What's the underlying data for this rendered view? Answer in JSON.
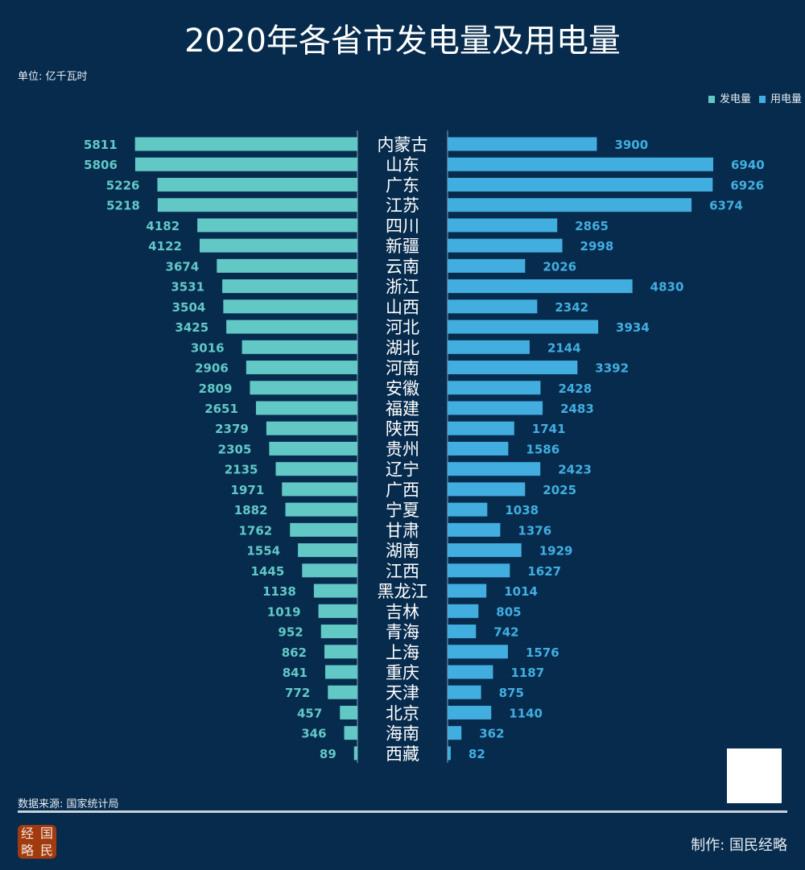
{
  "header": {
    "title": "2020年各省市发电量及用电量",
    "unit": "单位: 亿千瓦时"
  },
  "footer": {
    "source": "数据来源: 国家统计局",
    "maker": "制作:  国民经略",
    "logo_text": "经国略民"
  },
  "colors": {
    "background": "#062b4d",
    "generation": "#62c8c6",
    "consumption": "#42aee0"
  },
  "chart_data": {
    "type": "bar",
    "title": "2020年各省市发电量及用电量",
    "legend_position": "top-right",
    "grid": false,
    "categories": [
      "内蒙古",
      "山东",
      "广东",
      "江苏",
      "四川",
      "新疆",
      "云南",
      "浙江",
      "山西",
      "河北",
      "湖北",
      "河南",
      "安徽",
      "福建",
      "陕西",
      "贵州",
      "辽宁",
      "广西",
      "宁夏",
      "甘肃",
      "湖南",
      "江西",
      "黑龙江",
      "吉林",
      "青海",
      "上海",
      "重庆",
      "天津",
      "北京",
      "海南",
      "西藏"
    ],
    "series": [
      {
        "name": "发电量",
        "values": [
          5811,
          5806,
          5226,
          5218,
          4182,
          4122,
          3674,
          3531,
          3504,
          3425,
          3016,
          2906,
          2809,
          2651,
          2379,
          2305,
          2135,
          1971,
          1882,
          1762,
          1554,
          1445,
          1138,
          1019,
          952,
          862,
          841,
          772,
          457,
          346,
          89
        ]
      },
      {
        "name": "用电量",
        "values": [
          3900,
          6940,
          6926,
          6374,
          2865,
          2998,
          2026,
          4830,
          2342,
          3934,
          2144,
          3392,
          2428,
          2483,
          1741,
          1586,
          2423,
          2025,
          1038,
          1376,
          1929,
          1627,
          1014,
          805,
          742,
          1576,
          1187,
          875,
          1140,
          362,
          82
        ]
      }
    ]
  }
}
